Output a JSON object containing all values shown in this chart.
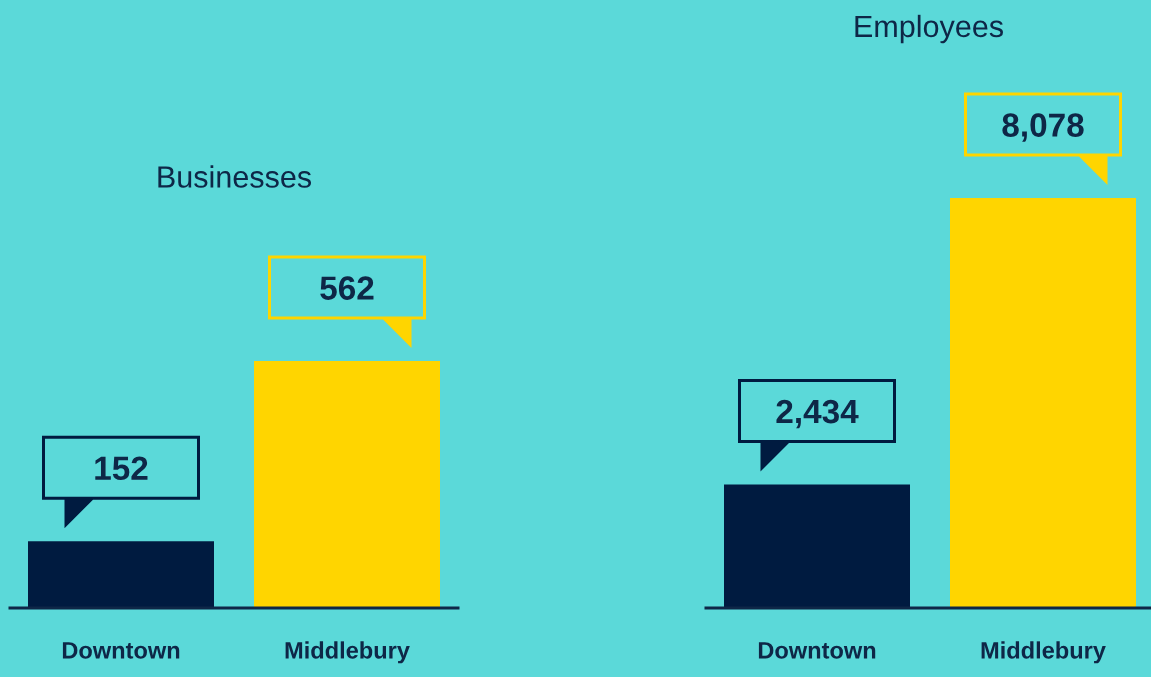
{
  "chart_data": [
    {
      "type": "bar",
      "title": "Businesses",
      "categories": [
        "Downtown",
        "Middlebury"
      ],
      "values": [
        152,
        562
      ],
      "colors": [
        "#001b40",
        "#ffd500"
      ],
      "value_labels": [
        "152",
        "562"
      ],
      "tick_labels": "x"
    },
    {
      "type": "bar",
      "title": "Employees",
      "categories": [
        "Downtown",
        "Middlebury"
      ],
      "values": [
        2434,
        8078
      ],
      "colors": [
        "#001b40",
        "#ffd500"
      ],
      "value_labels": [
        "2,434",
        "8,078"
      ],
      "tick_labels": "x"
    }
  ]
}
